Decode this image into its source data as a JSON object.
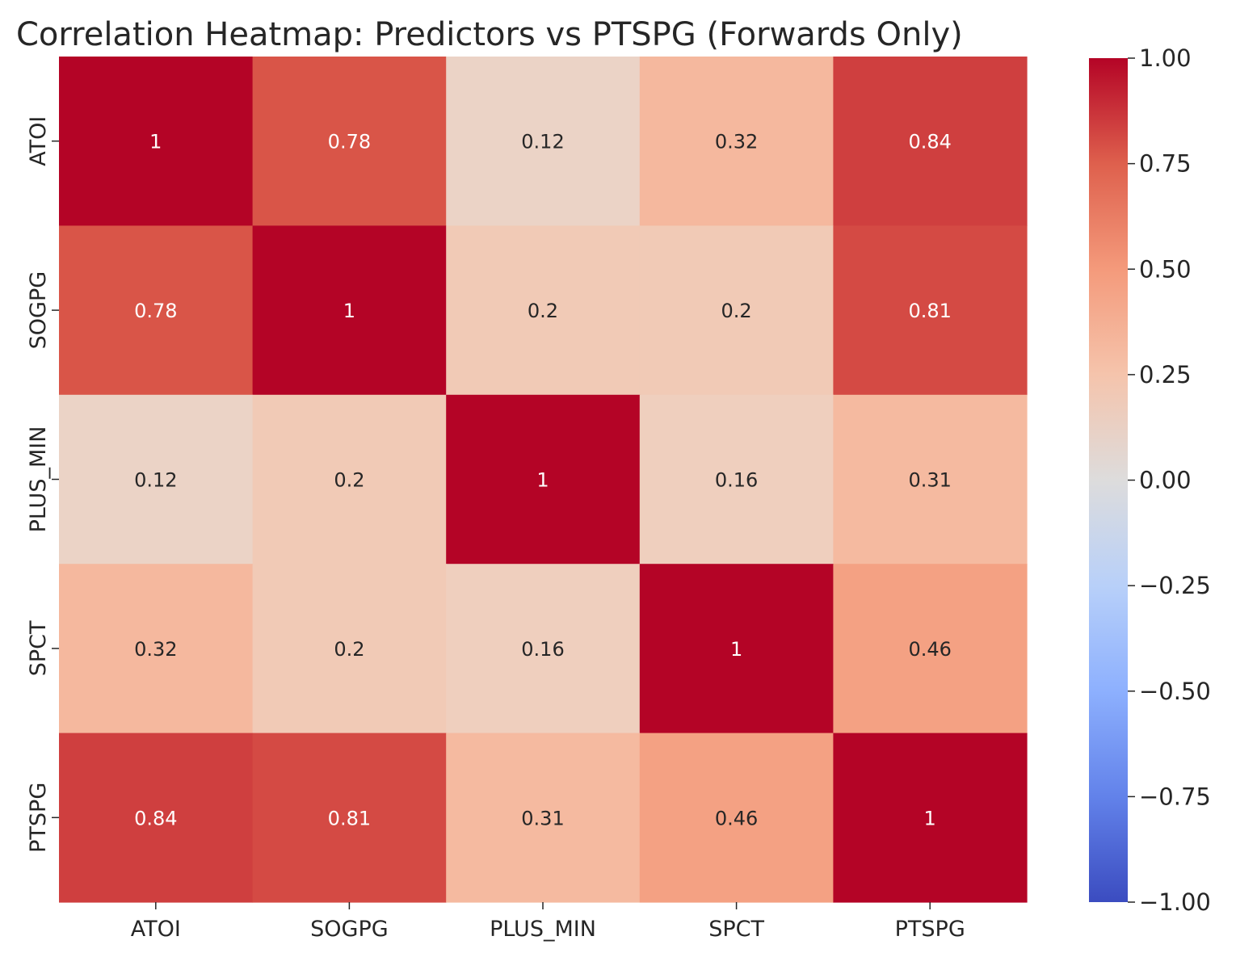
{
  "chart_data": {
    "type": "heatmap",
    "title": "Correlation Heatmap: Predictors vs PTSPG (Forwards Only)",
    "x_labels": [
      "ATOI",
      "SOGPG",
      "PLUS_MIN",
      "SPCT",
      "PTSPG"
    ],
    "y_labels": [
      "ATOI",
      "SOGPG",
      "PLUS_MIN",
      "SPCT",
      "PTSPG"
    ],
    "values": [
      [
        1,
        0.78,
        0.12,
        0.32,
        0.84
      ],
      [
        0.78,
        1,
        0.2,
        0.2,
        0.81
      ],
      [
        0.12,
        0.2,
        1,
        0.16,
        0.31
      ],
      [
        0.32,
        0.2,
        0.16,
        1,
        0.46
      ],
      [
        0.84,
        0.81,
        0.31,
        0.46,
        1
      ]
    ],
    "annotations": [
      [
        "1",
        "0.78",
        "0.12",
        "0.32",
        "0.84"
      ],
      [
        "0.78",
        "1",
        "0.2",
        "0.2",
        "0.81"
      ],
      [
        "0.12",
        "0.2",
        "1",
        "0.16",
        "0.31"
      ],
      [
        "0.32",
        "0.2",
        "0.16",
        "1",
        "0.46"
      ],
      [
        "0.84",
        "0.81",
        "0.31",
        "0.46",
        "1"
      ]
    ],
    "colormap": "coolwarm",
    "vmin": -1,
    "vmax": 1,
    "colorbar_ticks": [
      "1.00",
      "0.75",
      "0.50",
      "0.25",
      "0.00",
      "−0.25",
      "−0.50",
      "−0.75",
      "−1.00"
    ],
    "colorbar_tick_values": [
      1,
      0.75,
      0.5,
      0.25,
      0,
      -0.25,
      -0.5,
      -0.75,
      -1
    ],
    "grid": false,
    "legend": "colorbar-right"
  }
}
